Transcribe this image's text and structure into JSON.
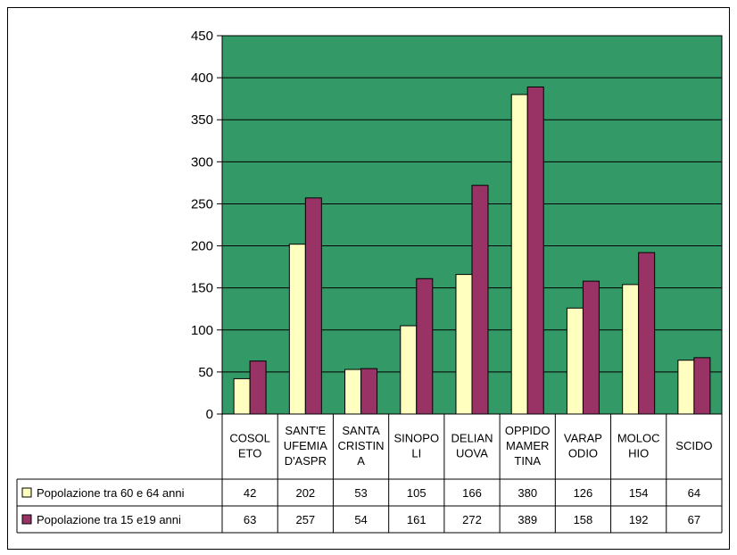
{
  "chart_data": {
    "type": "bar",
    "categories": [
      [
        "COSOL",
        "ETO"
      ],
      [
        "SANT'E",
        "UFEMIA",
        "D'ASPR"
      ],
      [
        "SANTA",
        "CRISTIN",
        "A"
      ],
      [
        "SINOPO",
        "LI"
      ],
      [
        "DELIAN",
        "UOVA"
      ],
      [
        "OPPIDO",
        "MAMER",
        "TINA"
      ],
      [
        "VARAP",
        "ODIO"
      ],
      [
        "MOLOC",
        "HIO"
      ],
      [
        "SCIDO"
      ]
    ],
    "series": [
      {
        "name": "Popolazione tra 60 e 64 anni",
        "color": "#ffffc0",
        "values": [
          42,
          202,
          53,
          105,
          166,
          380,
          126,
          154,
          64
        ]
      },
      {
        "name": "Popolazione tra 15 e19 anni",
        "color": "#993366",
        "values": [
          63,
          257,
          54,
          161,
          272,
          389,
          158,
          192,
          67
        ]
      }
    ],
    "ylim": [
      0,
      450
    ],
    "yticks": [
      "0",
      "50",
      "100",
      "150",
      "200",
      "250",
      "300",
      "350",
      "400",
      "450"
    ],
    "plot_background": "#339966",
    "grid": true,
    "legend_placement": "data-table"
  }
}
